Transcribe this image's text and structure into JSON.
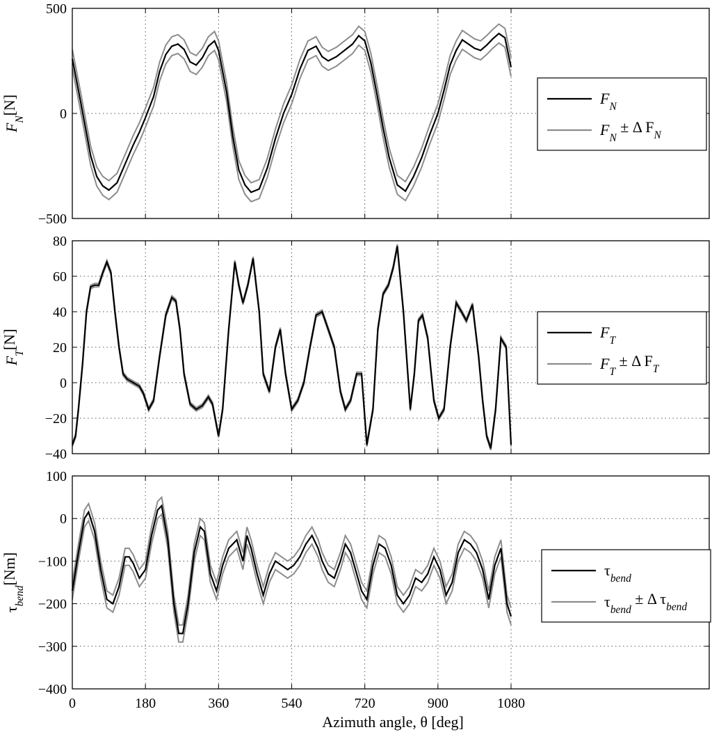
{
  "figure": {
    "xlabel": "Azimuth angle, θ [deg]"
  },
  "colors": {
    "main": "#000000",
    "band": "#8c8c8c",
    "grid": "#555555"
  },
  "chart_data": [
    {
      "type": "line",
      "id": "fn",
      "ylabel": {
        "base": "F",
        "sub": "N",
        "unit": "[N]"
      },
      "xlim": [
        0,
        1080
      ],
      "ylim": [
        -500,
        500
      ],
      "xticks": [
        0,
        180,
        360,
        540,
        720,
        900,
        1080
      ],
      "yticks": [
        -500,
        0,
        500
      ],
      "grid": true,
      "legend_position": "right",
      "legend": [
        {
          "name": "F_N",
          "display": {
            "base": "F",
            "sub": "N",
            "suffix": ""
          }
        },
        {
          "name": "F_N ± ΔF_N",
          "display": {
            "base": "F",
            "sub": "N",
            "suffix": " ± Δ F",
            "suffix_sub": "N"
          }
        }
      ],
      "band": 45,
      "series": [
        {
          "name": "F_N",
          "x": [
            0,
            20,
            45,
            60,
            75,
            90,
            110,
            130,
            150,
            165,
            180,
            200,
            215,
            230,
            245,
            260,
            275,
            290,
            305,
            320,
            335,
            350,
            360,
            380,
            395,
            410,
            425,
            440,
            460,
            480,
            500,
            520,
            540,
            560,
            580,
            600,
            615,
            630,
            650,
            670,
            690,
            705,
            720,
            735,
            750,
            765,
            780,
            800,
            820,
            840,
            860,
            880,
            900,
            915,
            930,
            945,
            960,
            975,
            990,
            1005,
            1020,
            1035,
            1050,
            1065,
            1080
          ],
          "y": [
            260,
            60,
            -200,
            -300,
            -345,
            -365,
            -330,
            -240,
            -150,
            -90,
            -20,
            80,
            200,
            280,
            320,
            330,
            305,
            245,
            230,
            265,
            320,
            345,
            300,
            100,
            -110,
            -270,
            -340,
            -375,
            -360,
            -260,
            -120,
            0,
            90,
            210,
            300,
            320,
            270,
            250,
            270,
            300,
            330,
            370,
            345,
            240,
            90,
            -70,
            -210,
            -340,
            -370,
            -300,
            -210,
            -100,
            0,
            110,
            230,
            300,
            350,
            330,
            310,
            300,
            325,
            355,
            380,
            360,
            220
          ]
        }
      ]
    },
    {
      "type": "line",
      "id": "ft",
      "ylabel": {
        "base": "F",
        "sub": "T",
        "unit": "[N]"
      },
      "xlim": [
        0,
        1080
      ],
      "ylim": [
        -40,
        80
      ],
      "xticks": [
        0,
        180,
        360,
        540,
        720,
        900,
        1080
      ],
      "yticks": [
        -40,
        -20,
        0,
        20,
        40,
        60,
        80
      ],
      "grid": true,
      "legend_position": "right",
      "legend": [
        {
          "name": "F_T",
          "display": {
            "base": "F",
            "sub": "T",
            "suffix": ""
          }
        },
        {
          "name": "F_T ± ΔF_T",
          "display": {
            "base": "F",
            "sub": "T",
            "suffix": " ± Δ F",
            "suffix_sub": "T"
          }
        }
      ],
      "band": 1,
      "series": [
        {
          "name": "F_T",
          "x": [
            0,
            8,
            15,
            25,
            35,
            45,
            55,
            65,
            75,
            85,
            95,
            105,
            115,
            125,
            135,
            150,
            165,
            175,
            188,
            200,
            215,
            230,
            245,
            255,
            265,
            275,
            290,
            305,
            320,
            335,
            345,
            360,
            370,
            385,
            400,
            410,
            420,
            432,
            445,
            460,
            470,
            485,
            500,
            512,
            525,
            540,
            555,
            570,
            585,
            600,
            615,
            630,
            645,
            660,
            672,
            685,
            700,
            712,
            725,
            740,
            752,
            765,
            778,
            790,
            800,
            815,
            832,
            842,
            852,
            862,
            875,
            890,
            902,
            915,
            930,
            945,
            958,
            970,
            985,
            1000,
            1010,
            1020,
            1030,
            1042,
            1055,
            1068,
            1080
          ],
          "y": [
            -35,
            -30,
            -15,
            10,
            40,
            54,
            55,
            55,
            62,
            68,
            62,
            40,
            20,
            5,
            2,
            0,
            -2,
            -6,
            -15,
            -10,
            15,
            38,
            48,
            46,
            30,
            5,
            -12,
            -15,
            -13,
            -8,
            -12,
            -30,
            -15,
            30,
            68,
            55,
            45,
            55,
            70,
            40,
            5,
            -5,
            20,
            30,
            5,
            -15,
            -10,
            0,
            20,
            38,
            40,
            30,
            20,
            -5,
            -15,
            -10,
            5,
            5,
            -35,
            -15,
            30,
            50,
            55,
            65,
            77,
            40,
            -15,
            5,
            35,
            38,
            25,
            -10,
            -20,
            -15,
            20,
            45,
            40,
            35,
            44,
            15,
            -10,
            -30,
            -37,
            -15,
            25,
            20,
            -35
          ]
        }
      ]
    },
    {
      "type": "line",
      "id": "tau",
      "ylabel": {
        "base": "τ",
        "sub": "bend",
        "unit": "[Nm]"
      },
      "xlim": [
        0,
        1080
      ],
      "ylim": [
        -400,
        100
      ],
      "xticks": [
        0,
        180,
        360,
        540,
        720,
        900,
        1080
      ],
      "yticks": [
        -400,
        -300,
        -200,
        -100,
        0,
        100
      ],
      "grid": true,
      "legend_position": "right",
      "legend": [
        {
          "name": "τ_bend",
          "display": {
            "base": "τ",
            "sub": "bend",
            "suffix": ""
          }
        },
        {
          "name": "τ_bend ± Δτ_bend",
          "display": {
            "base": "τ",
            "sub": "bend",
            "suffix": " ± Δ τ",
            "suffix_sub": "bend"
          }
        }
      ],
      "band": 20,
      "series": [
        {
          "name": "τ_bend",
          "x": [
            0,
            15,
            30,
            40,
            55,
            70,
            85,
            100,
            115,
            130,
            140,
            150,
            165,
            180,
            195,
            210,
            220,
            235,
            250,
            262,
            272,
            285,
            300,
            315,
            325,
            340,
            355,
            370,
            385,
            395,
            405,
            420,
            430,
            440,
            455,
            470,
            485,
            500,
            515,
            530,
            545,
            560,
            575,
            590,
            605,
            615,
            630,
            645,
            660,
            672,
            685,
            700,
            712,
            725,
            740,
            755,
            770,
            785,
            800,
            815,
            830,
            845,
            860,
            875,
            890,
            905,
            920,
            935,
            950,
            965,
            980,
            995,
            1010,
            1025,
            1040,
            1055,
            1070,
            1080
          ],
          "y": [
            -170,
            -80,
            0,
            15,
            -30,
            -120,
            -190,
            -200,
            -160,
            -90,
            -90,
            -105,
            -140,
            -120,
            -40,
            20,
            30,
            -50,
            -200,
            -270,
            -270,
            -200,
            -80,
            -20,
            -30,
            -130,
            -170,
            -110,
            -70,
            -60,
            -50,
            -100,
            -40,
            -70,
            -130,
            -180,
            -130,
            -100,
            -110,
            -120,
            -110,
            -90,
            -60,
            -40,
            -70,
            -100,
            -130,
            -140,
            -100,
            -60,
            -80,
            -130,
            -170,
            -190,
            -110,
            -60,
            -70,
            -110,
            -180,
            -200,
            -180,
            -140,
            -150,
            -130,
            -90,
            -120,
            -180,
            -150,
            -80,
            -50,
            -60,
            -80,
            -120,
            -190,
            -110,
            -70,
            -200,
            -230
          ]
        }
      ]
    }
  ]
}
